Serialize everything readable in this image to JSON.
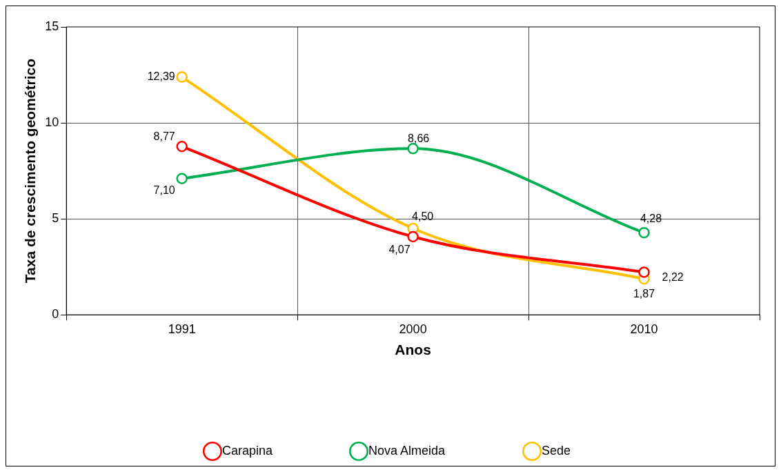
{
  "chart_data": {
    "type": "line",
    "xlabel": "Anos",
    "ylabel": "Taxa de crescimento geométrico",
    "categories": [
      "1991",
      "2000",
      "2010"
    ],
    "series": [
      {
        "name": "Carapina",
        "color": "#ff0000",
        "values": [
          8.77,
          4.07,
          2.22
        ],
        "value_labels": [
          "8,77",
          "4,07",
          "2,22"
        ]
      },
      {
        "name": "Nova Almeida",
        "color": "#00b050",
        "values": [
          7.1,
          8.66,
          4.28
        ],
        "value_labels": [
          "7,10",
          "8,66",
          "4,28"
        ]
      },
      {
        "name": "Sede",
        "color": "#ffc000",
        "values": [
          12.39,
          4.5,
          1.87
        ],
        "value_labels": [
          "12,39",
          "4,50",
          "1,87"
        ]
      }
    ],
    "ylim": [
      0,
      15
    ],
    "yticks": [
      0,
      5,
      10,
      15
    ],
    "grid": true,
    "legend": "bottom",
    "marker": "circle",
    "line_style": "solid"
  }
}
